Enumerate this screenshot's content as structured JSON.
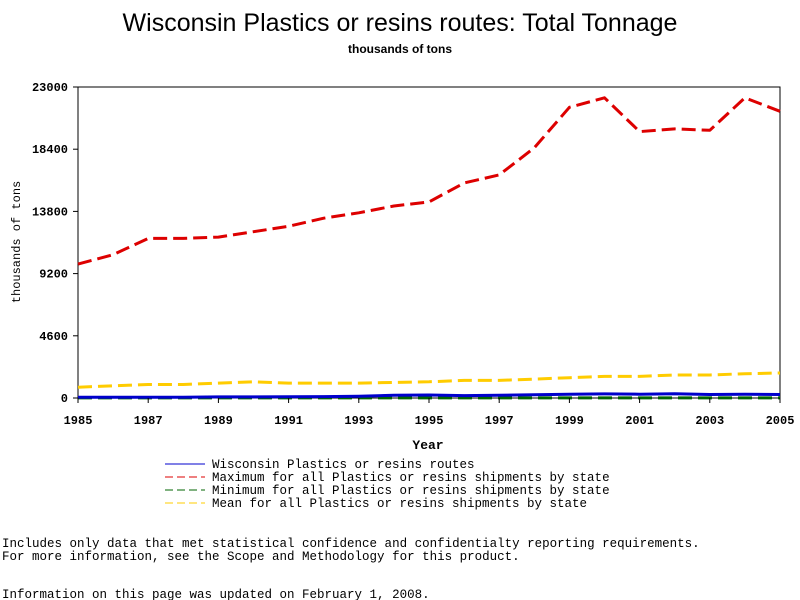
{
  "chart_data": {
    "type": "line",
    "title": "Wisconsin Plastics or resins routes: Total Tonnage",
    "subtitle": "thousands of tons",
    "xlabel": "Year",
    "ylabel": "thousands of tons",
    "xlim": [
      1985,
      2005
    ],
    "ylim": [
      0,
      23000
    ],
    "x_ticks": [
      "1985",
      "1987",
      "1989",
      "1991",
      "1993",
      "1995",
      "1997",
      "1999",
      "2001",
      "2003",
      "2005"
    ],
    "y_ticks": [
      "0",
      "4600",
      "9200",
      "13800",
      "18400",
      "23000"
    ],
    "x": [
      1985,
      1986,
      1987,
      1988,
      1989,
      1990,
      1991,
      1992,
      1993,
      1994,
      1995,
      1996,
      1997,
      1998,
      1999,
      2000,
      2001,
      2002,
      2003,
      2004,
      2005
    ],
    "series": [
      {
        "name": "Wisconsin Plastics or resins routes",
        "color": "#0000cc",
        "dash": "solid",
        "values": [
          50,
          50,
          60,
          60,
          80,
          80,
          90,
          100,
          130,
          200,
          220,
          180,
          210,
          240,
          280,
          300,
          280,
          310,
          260,
          280,
          260
        ]
      },
      {
        "name": "Maximum for all Plastics or resins shipments by state",
        "color": "#dd0000",
        "dash": "dashed",
        "values": [
          9900,
          10600,
          11800,
          11800,
          11900,
          12300,
          12700,
          13300,
          13700,
          14200,
          14500,
          15900,
          16500,
          18500,
          21500,
          22200,
          19700,
          19900,
          19800,
          22200,
          21200
        ]
      },
      {
        "name": "Minimum for all Plastics or resins shipments by state",
        "color": "#006600",
        "dash": "dashed",
        "values": [
          10,
          10,
          10,
          10,
          10,
          10,
          10,
          10,
          10,
          10,
          10,
          10,
          10,
          10,
          10,
          10,
          10,
          10,
          10,
          10,
          10
        ]
      },
      {
        "name": "Mean for all Plastics or resins shipments by state",
        "color": "#ffcc00",
        "dash": "dashed",
        "values": [
          800,
          900,
          1000,
          1000,
          1100,
          1200,
          1100,
          1100,
          1100,
          1150,
          1200,
          1300,
          1300,
          1400,
          1500,
          1600,
          1600,
          1700,
          1700,
          1800,
          1850
        ]
      }
    ],
    "grid": false,
    "legend": "bottom"
  },
  "notes": {
    "line1": "Includes only data that met statistical confidence and confidentialty reporting requirements.",
    "line2": "For more information, see the Scope and Methodology for this product.",
    "updated": "Information on this page was updated on February 1, 2008."
  }
}
